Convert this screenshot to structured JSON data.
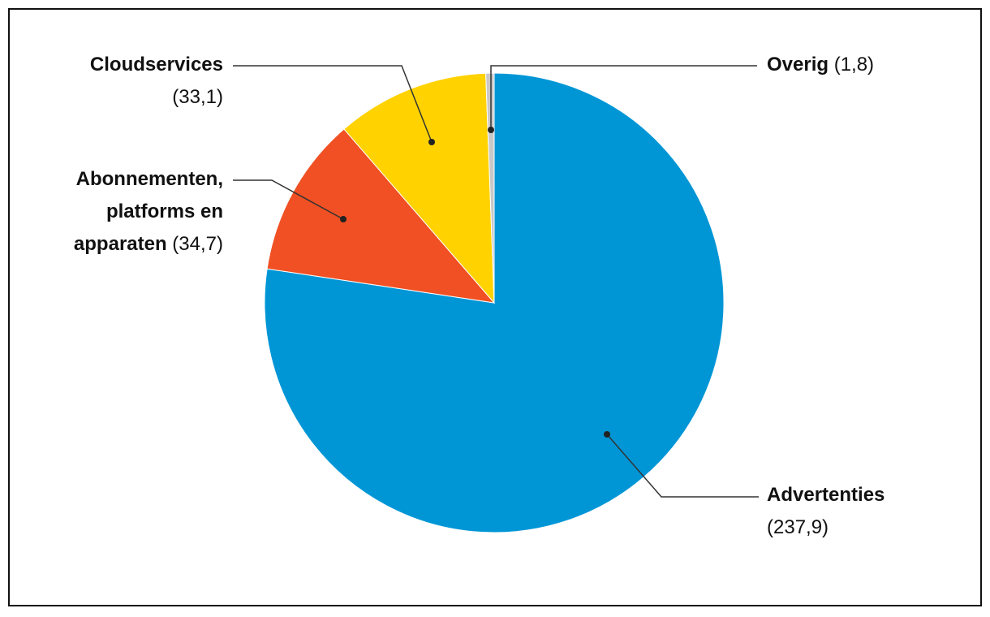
{
  "chart_data": {
    "type": "pie",
    "categories": [
      "Advertenties",
      "Abonnementen, platforms en apparaten",
      "Cloudservices",
      "Overig"
    ],
    "values": [
      237.9,
      34.7,
      33.1,
      1.8
    ],
    "value_labels": [
      "(237,9)",
      "(34,7)",
      "(33,1)",
      "(1,8)"
    ],
    "colors": [
      "#0096d6",
      "#f05023",
      "#ffd200",
      "#c8c8c8"
    ]
  }
}
